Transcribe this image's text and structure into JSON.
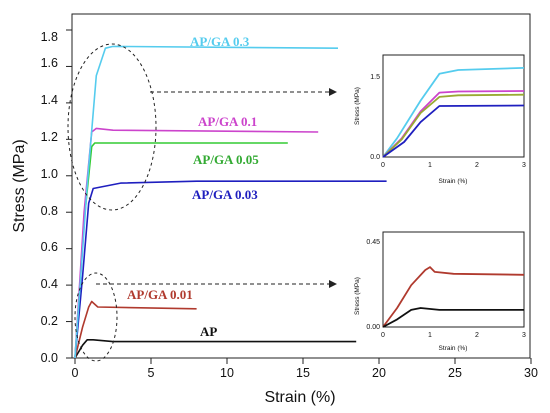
{
  "chart_data": [
    {
      "type": "line",
      "xlabel": "Strain (%)",
      "ylabel": "Stress (MPa)",
      "xlim": [
        0,
        30
      ],
      "ylim": [
        0,
        1.8
      ],
      "x_ticks": [
        "0",
        "5",
        "10",
        "15",
        "20",
        "25",
        "30"
      ],
      "y_ticks": [
        "0.0",
        "0.2",
        "0.4",
        "0.6",
        "0.8",
        "1.0",
        "1.2",
        "1.4",
        "1.6",
        "1.8"
      ],
      "series": [
        {
          "name": "AP",
          "color": "#111111",
          "points": [
            [
              0,
              0
            ],
            [
              0.5,
              0.07
            ],
            [
              0.8,
              0.1
            ],
            [
              1.2,
              0.1
            ],
            [
              2.5,
              0.09
            ],
            [
              18.5,
              0.09
            ]
          ]
        },
        {
          "name": "AP/GA 0.01",
          "color": "#b03a2e",
          "points": [
            [
              0,
              0
            ],
            [
              0.5,
              0.17
            ],
            [
              0.9,
              0.28
            ],
            [
              1.1,
              0.31
            ],
            [
              1.5,
              0.28
            ],
            [
              8,
              0.27
            ]
          ]
        },
        {
          "name": "AP/GA 0.03",
          "color": "#1f1fbf",
          "points": [
            [
              0,
              0
            ],
            [
              0.5,
              0.45
            ],
            [
              0.9,
              0.85
            ],
            [
              1.2,
              0.93
            ],
            [
              3,
              0.96
            ],
            [
              8,
              0.97
            ],
            [
              20.5,
              0.97
            ]
          ]
        },
        {
          "name": "AP/GA 0.05",
          "color": "#33cc33",
          "points": [
            [
              0,
              0
            ],
            [
              0.6,
              0.75
            ],
            [
              1.1,
              1.16
            ],
            [
              1.3,
              1.18
            ],
            [
              14,
              1.18
            ]
          ]
        },
        {
          "name": "AP/GA 0.1",
          "color": "#cc44cc",
          "points": [
            [
              0,
              0
            ],
            [
              0.6,
              0.8
            ],
            [
              1.1,
              1.24
            ],
            [
              1.4,
              1.26
            ],
            [
              2.5,
              1.25
            ],
            [
              16,
              1.24
            ]
          ]
        },
        {
          "name": "AP/GA 0.3",
          "color": "#55ccee",
          "points": [
            [
              0,
              0
            ],
            [
              0.8,
              0.95
            ],
            [
              1.4,
              1.55
            ],
            [
              2,
              1.7
            ],
            [
              2.5,
              1.71
            ],
            [
              17.3,
              1.7
            ]
          ]
        }
      ],
      "annotations": [
        "AP/GA 0.3",
        "AP/GA 0.1",
        "AP/GA 0.05",
        "AP/GA 0.03",
        "AP/GA 0.01",
        "AP"
      ]
    },
    {
      "type": "line",
      "xlabel": "Strain (%)",
      "ylabel": "Stress (MPa)",
      "xlim": [
        0,
        3
      ],
      "ylim": [
        0,
        1.9
      ],
      "x_ticks": [
        "0",
        "1",
        "2",
        "3"
      ],
      "y_ticks": [
        "0.0",
        "1.5"
      ],
      "series": [
        {
          "name": "AP/GA 0.3",
          "color": "#55ccee",
          "points": [
            [
              0,
              0
            ],
            [
              0.3,
              0.35
            ],
            [
              0.8,
              1.05
            ],
            [
              1.2,
              1.55
            ],
            [
              1.6,
              1.62
            ],
            [
              3,
              1.66
            ]
          ]
        },
        {
          "name": "AP/GA 0.1",
          "color": "#cc44cc",
          "points": [
            [
              0,
              0
            ],
            [
              0.4,
              0.35
            ],
            [
              0.8,
              0.85
            ],
            [
              1.2,
              1.2
            ],
            [
              1.6,
              1.22
            ],
            [
              3,
              1.23
            ]
          ]
        },
        {
          "name": "AP/GA 0.05",
          "color": "#99aa33",
          "points": [
            [
              0,
              0
            ],
            [
              0.4,
              0.33
            ],
            [
              0.8,
              0.82
            ],
            [
              1.2,
              1.12
            ],
            [
              1.6,
              1.15
            ],
            [
              3,
              1.16
            ]
          ]
        },
        {
          "name": "AP/GA 0.03",
          "color": "#1f1fbf",
          "points": [
            [
              0,
              0
            ],
            [
              0.45,
              0.28
            ],
            [
              0.8,
              0.65
            ],
            [
              1.2,
              0.95
            ],
            [
              3,
              0.96
            ]
          ]
        }
      ]
    },
    {
      "type": "line",
      "xlabel": "Strain (%)",
      "ylabel": "Stress (MPa)",
      "xlim": [
        0,
        3
      ],
      "ylim": [
        0,
        0.5
      ],
      "x_ticks": [
        "0",
        "1",
        "2",
        "3"
      ],
      "y_ticks": [
        "0.00",
        "0.45"
      ],
      "series": [
        {
          "name": "AP/GA 0.01",
          "color": "#b03a2e",
          "points": [
            [
              0,
              0
            ],
            [
              0.3,
              0.1
            ],
            [
              0.6,
              0.22
            ],
            [
              0.9,
              0.3
            ],
            [
              1.0,
              0.315
            ],
            [
              1.1,
              0.29
            ],
            [
              1.5,
              0.28
            ],
            [
              3,
              0.275
            ]
          ]
        },
        {
          "name": "AP",
          "color": "#111111",
          "points": [
            [
              0,
              0
            ],
            [
              0.3,
              0.04
            ],
            [
              0.6,
              0.09
            ],
            [
              0.8,
              0.1
            ],
            [
              1.2,
              0.09
            ],
            [
              3,
              0.09
            ]
          ]
        }
      ]
    }
  ]
}
